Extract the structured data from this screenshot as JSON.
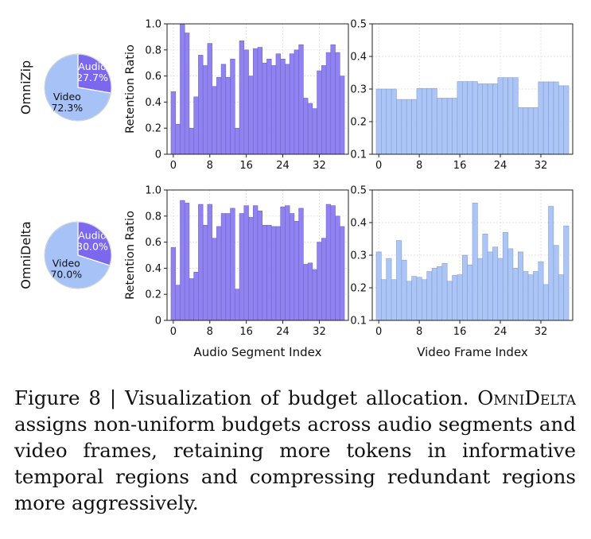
{
  "chart_data": [
    {
      "type": "pie",
      "row_label": "OmniZip",
      "slices": [
        {
          "name": "Audio",
          "value": 27.7,
          "label": "27.7%",
          "color": "#7b68ee"
        },
        {
          "name": "Video",
          "value": 72.3,
          "label": "72.3%",
          "color": "#a6c2f7"
        }
      ]
    },
    {
      "type": "bar",
      "ylabel": "Retention Ratio",
      "xlabel": "",
      "ylim": [
        0,
        1.0
      ],
      "yticks": [
        "0",
        "0.2",
        "0.4",
        "0.6",
        "0.8",
        "1.0"
      ],
      "xticks": [
        {
          "value": 0,
          "label": "0"
        },
        {
          "value": 8,
          "label": "8"
        },
        {
          "value": 16,
          "label": "16"
        },
        {
          "value": 24,
          "label": "24"
        },
        {
          "value": 32,
          "label": "32"
        }
      ],
      "color": "#8a7cf0",
      "values": [
        0.48,
        0.23,
        1.0,
        0.93,
        0.2,
        0.44,
        0.76,
        0.68,
        0.85,
        0.52,
        0.59,
        0.69,
        0.59,
        0.73,
        0.2,
        0.87,
        0.8,
        0.6,
        0.81,
        0.82,
        0.7,
        0.73,
        0.68,
        0.77,
        0.73,
        0.69,
        0.77,
        0.8,
        0.84,
        0.43,
        0.39,
        0.35,
        0.64,
        0.68,
        0.78,
        0.84,
        0.78,
        0.6
      ]
    },
    {
      "type": "bar",
      "xlabel": "",
      "ylim": [
        0.1,
        0.5
      ],
      "yticks": [
        "0.1",
        "0.2",
        "0.3",
        "0.4",
        "0.5"
      ],
      "xticks": [
        {
          "value": 0,
          "label": "0"
        },
        {
          "value": 8,
          "label": "8"
        },
        {
          "value": 16,
          "label": "16"
        },
        {
          "value": 24,
          "label": "24"
        },
        {
          "value": 32,
          "label": "32"
        }
      ],
      "color": "#a6c2f7",
      "values": [
        0.3,
        0.3,
        0.3,
        0.3,
        0.268,
        0.268,
        0.268,
        0.268,
        0.302,
        0.302,
        0.302,
        0.302,
        0.272,
        0.272,
        0.272,
        0.272,
        0.323,
        0.323,
        0.323,
        0.323,
        0.316,
        0.316,
        0.316,
        0.316,
        0.335,
        0.335,
        0.335,
        0.335,
        0.243,
        0.243,
        0.243,
        0.243,
        0.322,
        0.322,
        0.322,
        0.322,
        0.31,
        0.31
      ]
    },
    {
      "type": "pie",
      "row_label": "OmniDelta",
      "slices": [
        {
          "name": "Audio",
          "value": 30.0,
          "label": "30.0%",
          "color": "#7b68ee"
        },
        {
          "name": "Video",
          "value": 70.0,
          "label": "70.0%",
          "color": "#a6c2f7"
        }
      ]
    },
    {
      "type": "bar",
      "ylabel": "Retention Ratio",
      "xlabel": "Audio Segment Index",
      "ylim": [
        0,
        1.0
      ],
      "yticks": [
        "0",
        "0.2",
        "0.4",
        "0.6",
        "0.8",
        "1.0"
      ],
      "xticks": [
        {
          "value": 0,
          "label": "0"
        },
        {
          "value": 8,
          "label": "8"
        },
        {
          "value": 16,
          "label": "16"
        },
        {
          "value": 24,
          "label": "24"
        },
        {
          "value": 32,
          "label": "32"
        }
      ],
      "color": "#8a7cf0",
      "values": [
        0.56,
        0.27,
        0.92,
        0.9,
        0.32,
        0.37,
        0.89,
        0.73,
        0.89,
        0.63,
        0.72,
        0.82,
        0.82,
        0.86,
        0.24,
        0.82,
        0.88,
        0.79,
        0.88,
        0.84,
        0.73,
        0.73,
        0.72,
        0.72,
        0.87,
        0.88,
        0.82,
        0.76,
        0.86,
        0.43,
        0.44,
        0.39,
        0.6,
        0.63,
        0.89,
        0.88,
        0.8,
        0.72
      ]
    },
    {
      "type": "bar",
      "xlabel": "Video Frame Index",
      "ylim": [
        0.1,
        0.5
      ],
      "yticks": [
        "0.1",
        "0.2",
        "0.3",
        "0.4",
        "0.5"
      ],
      "xticks": [
        {
          "value": 0,
          "label": "0"
        },
        {
          "value": 8,
          "label": "8"
        },
        {
          "value": 16,
          "label": "16"
        },
        {
          "value": 24,
          "label": "24"
        },
        {
          "value": 32,
          "label": "32"
        }
      ],
      "color": "#a6c2f7",
      "values": [
        0.31,
        0.225,
        0.29,
        0.225,
        0.345,
        0.285,
        0.22,
        0.235,
        0.232,
        0.225,
        0.25,
        0.26,
        0.265,
        0.275,
        0.22,
        0.238,
        0.24,
        0.3,
        0.27,
        0.46,
        0.29,
        0.365,
        0.31,
        0.325,
        0.29,
        0.37,
        0.32,
        0.26,
        0.31,
        0.25,
        0.24,
        0.25,
        0.28,
        0.21,
        0.45,
        0.33,
        0.24,
        0.39
      ]
    }
  ],
  "caption": {
    "lead": "Figure 8 | Visualization of budget allocation.",
    "method_name": "OmniDelta",
    "rest": "assigns non-uniform budgets across audio segments and video frames, retaining more tokens in informative temporal regions and compressing redundant regions more aggressively."
  }
}
